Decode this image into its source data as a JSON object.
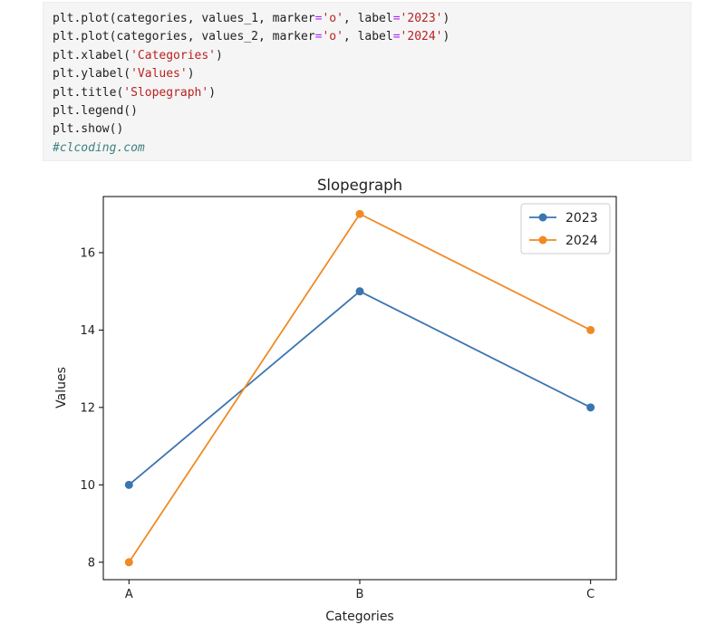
{
  "code": {
    "lines": [
      [
        "plt.plot(categories, values_1, ",
        "marker",
        "=",
        "'o'",
        ", ",
        "label",
        "=",
        "'2023'",
        ")"
      ],
      [
        "plt.plot(categories, values_2, ",
        "marker",
        "=",
        "'o'",
        ", ",
        "label",
        "=",
        "'2024'",
        ")"
      ],
      [
        "plt.xlabel(",
        "'Categories'",
        ")"
      ],
      [
        "plt.ylabel(",
        "'Values'",
        ")"
      ],
      [
        "plt.title(",
        "'Slopegraph'",
        ")"
      ],
      [
        "plt.legend()"
      ],
      [
        "plt.show()"
      ]
    ],
    "comment": "#clcoding.com"
  },
  "chart_data": {
    "type": "line",
    "title": "Slopegraph",
    "xlabel": "Categories",
    "ylabel": "Values",
    "categories": [
      "A",
      "B",
      "C"
    ],
    "series": [
      {
        "name": "2023",
        "values": [
          10,
          15,
          12
        ],
        "color": "#3a75b0"
      },
      {
        "name": "2024",
        "values": [
          8,
          17,
          14
        ],
        "color": "#f08a24"
      }
    ],
    "ylim": [
      7.55,
      17.45
    ],
    "yticks": [
      8,
      10,
      12,
      14,
      16
    ],
    "grid": false,
    "legend": "top-right",
    "marker": "circle"
  }
}
